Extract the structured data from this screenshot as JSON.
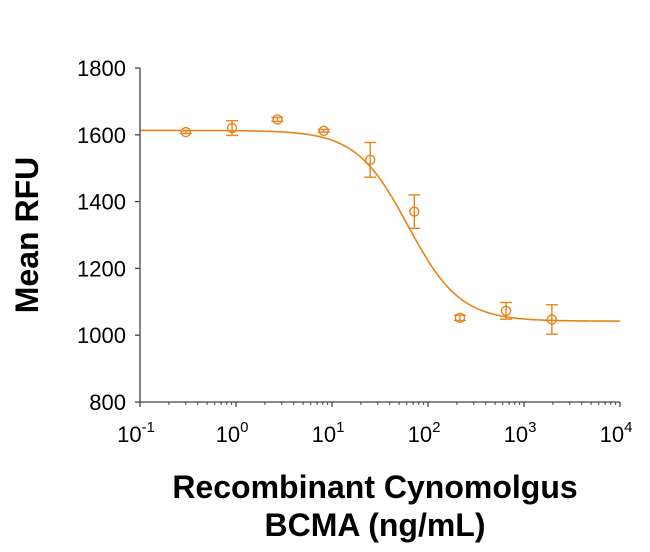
{
  "chart_data": {
    "type": "scatter",
    "title": "",
    "xlabel_lines": [
      "Recombinant Cynomolgus",
      "BCMA (ng/mL)"
    ],
    "ylabel": "Mean RFU",
    "xscale": "log",
    "xlim": [
      0.1,
      10000
    ],
    "ylim": [
      800,
      1800
    ],
    "yticks": [
      800,
      1000,
      1200,
      1400,
      1600,
      1800
    ],
    "ytick_labels": [
      "800",
      "1000",
      "1200",
      "1400",
      "1600",
      "1800"
    ],
    "xticks": [
      {
        "base": "10",
        "exp": "-1",
        "value": 0.1
      },
      {
        "base": "10",
        "exp": "0",
        "value": 1
      },
      {
        "base": "10",
        "exp": "1",
        "value": 10
      },
      {
        "base": "10",
        "exp": "2",
        "value": 100
      },
      {
        "base": "10",
        "exp": "3",
        "value": 1000
      },
      {
        "base": "10",
        "exp": "4",
        "value": 10000
      }
    ],
    "grid": false,
    "legend": "none",
    "color": "#E8841A",
    "series": [
      {
        "name": "Mean RFU",
        "x": [
          0.3,
          0.91,
          2.7,
          8.2,
          25,
          72,
          215,
          650,
          1950
        ],
        "y": [
          1608,
          1620,
          1646,
          1612,
          1525,
          1370,
          1052,
          1073,
          1047
        ],
        "yerr": [
          4,
          22,
          6,
          4,
          52,
          50,
          8,
          25,
          44
        ]
      }
    ],
    "fit": {
      "type": "4PL",
      "top": 1613,
      "bottom": 1042,
      "ec50": 62,
      "hill": 1.6
    }
  }
}
